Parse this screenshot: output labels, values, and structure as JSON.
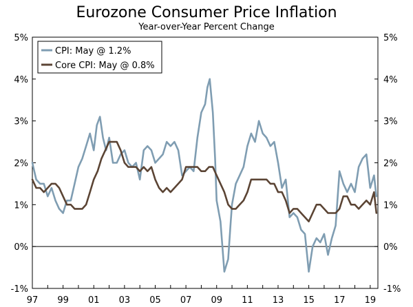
{
  "chart_data": {
    "type": "line",
    "title": "Eurozone Consumer Price Inflation",
    "subtitle": "Year-over-Year Percent Change",
    "xlabel": "",
    "ylabel": "",
    "ylim": [
      -1,
      5
    ],
    "xlim": [
      1997.0,
      2019.5
    ],
    "y_ticks": [
      -1,
      0,
      1,
      2,
      3,
      4,
      5
    ],
    "y_tick_labels": [
      "-1%",
      "0%",
      "1%",
      "2%",
      "3%",
      "4%",
      "5%"
    ],
    "x_ticks": [
      1997,
      1999,
      2001,
      2003,
      2005,
      2007,
      2009,
      2011,
      2013,
      2015,
      2017,
      2019
    ],
    "x_tick_labels": [
      "97",
      "99",
      "01",
      "03",
      "05",
      "07",
      "09",
      "11",
      "13",
      "15",
      "17",
      "19"
    ],
    "grid": false,
    "zero_line": true,
    "legend_position": "top-left",
    "series": [
      {
        "name": "CPI: May @ 1.2%",
        "color": "#7f9db2",
        "points": [
          [
            1997.0,
            2.0
          ],
          [
            1997.25,
            1.6
          ],
          [
            1997.5,
            1.5
          ],
          [
            1997.75,
            1.5
          ],
          [
            1998.0,
            1.2
          ],
          [
            1998.25,
            1.4
          ],
          [
            1998.5,
            1.1
          ],
          [
            1998.75,
            0.9
          ],
          [
            1999.0,
            0.8
          ],
          [
            1999.25,
            1.1
          ],
          [
            1999.5,
            1.1
          ],
          [
            1999.75,
            1.5
          ],
          [
            2000.0,
            1.9
          ],
          [
            2000.25,
            2.1
          ],
          [
            2000.5,
            2.4
          ],
          [
            2000.75,
            2.7
          ],
          [
            2001.0,
            2.3
          ],
          [
            2001.2,
            2.9
          ],
          [
            2001.4,
            3.1
          ],
          [
            2001.6,
            2.6
          ],
          [
            2001.8,
            2.3
          ],
          [
            2002.0,
            2.6
          ],
          [
            2002.25,
            2.0
          ],
          [
            2002.5,
            2.0
          ],
          [
            2002.75,
            2.2
          ],
          [
            2003.0,
            2.3
          ],
          [
            2003.25,
            2.0
          ],
          [
            2003.5,
            1.9
          ],
          [
            2003.75,
            2.0
          ],
          [
            2004.0,
            1.6
          ],
          [
            2004.25,
            2.3
          ],
          [
            2004.5,
            2.4
          ],
          [
            2004.75,
            2.3
          ],
          [
            2005.0,
            2.0
          ],
          [
            2005.25,
            2.1
          ],
          [
            2005.5,
            2.2
          ],
          [
            2005.75,
            2.5
          ],
          [
            2006.0,
            2.4
          ],
          [
            2006.25,
            2.5
          ],
          [
            2006.5,
            2.3
          ],
          [
            2006.75,
            1.7
          ],
          [
            2007.0,
            1.8
          ],
          [
            2007.25,
            1.9
          ],
          [
            2007.5,
            1.8
          ],
          [
            2007.75,
            2.6
          ],
          [
            2008.0,
            3.2
          ],
          [
            2008.25,
            3.4
          ],
          [
            2008.4,
            3.8
          ],
          [
            2008.55,
            4.0
          ],
          [
            2008.75,
            3.2
          ],
          [
            2008.9,
            2.1
          ],
          [
            2009.0,
            1.1
          ],
          [
            2009.25,
            0.6
          ],
          [
            2009.5,
            -0.6
          ],
          [
            2009.75,
            -0.3
          ],
          [
            2009.9,
            0.5
          ],
          [
            2010.0,
            1.0
          ],
          [
            2010.25,
            1.5
          ],
          [
            2010.5,
            1.7
          ],
          [
            2010.75,
            1.9
          ],
          [
            2011.0,
            2.4
          ],
          [
            2011.25,
            2.7
          ],
          [
            2011.5,
            2.5
          ],
          [
            2011.75,
            3.0
          ],
          [
            2012.0,
            2.7
          ],
          [
            2012.25,
            2.6
          ],
          [
            2012.5,
            2.4
          ],
          [
            2012.75,
            2.5
          ],
          [
            2013.0,
            2.0
          ],
          [
            2013.25,
            1.4
          ],
          [
            2013.5,
            1.6
          ],
          [
            2013.75,
            0.7
          ],
          [
            2014.0,
            0.8
          ],
          [
            2014.25,
            0.7
          ],
          [
            2014.5,
            0.4
          ],
          [
            2014.75,
            0.3
          ],
          [
            2015.0,
            -0.6
          ],
          [
            2015.25,
            0.0
          ],
          [
            2015.5,
            0.2
          ],
          [
            2015.75,
            0.1
          ],
          [
            2016.0,
            0.3
          ],
          [
            2016.25,
            -0.2
          ],
          [
            2016.5,
            0.2
          ],
          [
            2016.75,
            0.5
          ],
          [
            2017.0,
            1.8
          ],
          [
            2017.25,
            1.5
          ],
          [
            2017.5,
            1.3
          ],
          [
            2017.75,
            1.5
          ],
          [
            2018.0,
            1.3
          ],
          [
            2018.25,
            1.9
          ],
          [
            2018.5,
            2.1
          ],
          [
            2018.75,
            2.2
          ],
          [
            2019.0,
            1.4
          ],
          [
            2019.25,
            1.7
          ],
          [
            2019.4,
            1.2
          ]
        ]
      },
      {
        "name": "Core CPI: May @ 0.8%",
        "color": "#5b4434",
        "points": [
          [
            1997.0,
            1.6
          ],
          [
            1997.25,
            1.4
          ],
          [
            1997.5,
            1.4
          ],
          [
            1997.75,
            1.3
          ],
          [
            1998.0,
            1.4
          ],
          [
            1998.25,
            1.5
          ],
          [
            1998.5,
            1.5
          ],
          [
            1998.75,
            1.4
          ],
          [
            1999.0,
            1.2
          ],
          [
            1999.25,
            1.0
          ],
          [
            1999.5,
            1.0
          ],
          [
            1999.75,
            0.9
          ],
          [
            2000.0,
            0.9
          ],
          [
            2000.25,
            0.9
          ],
          [
            2000.5,
            1.0
          ],
          [
            2000.75,
            1.3
          ],
          [
            2001.0,
            1.6
          ],
          [
            2001.25,
            1.8
          ],
          [
            2001.5,
            2.1
          ],
          [
            2001.75,
            2.3
          ],
          [
            2002.0,
            2.5
          ],
          [
            2002.25,
            2.5
          ],
          [
            2002.5,
            2.5
          ],
          [
            2002.75,
            2.3
          ],
          [
            2003.0,
            2.0
          ],
          [
            2003.25,
            1.9
          ],
          [
            2003.5,
            1.9
          ],
          [
            2003.75,
            1.9
          ],
          [
            2004.0,
            1.8
          ],
          [
            2004.25,
            1.9
          ],
          [
            2004.5,
            1.8
          ],
          [
            2004.75,
            1.9
          ],
          [
            2005.0,
            1.6
          ],
          [
            2005.25,
            1.4
          ],
          [
            2005.5,
            1.3
          ],
          [
            2005.75,
            1.4
          ],
          [
            2006.0,
            1.3
          ],
          [
            2006.25,
            1.4
          ],
          [
            2006.5,
            1.5
          ],
          [
            2006.75,
            1.6
          ],
          [
            2007.0,
            1.9
          ],
          [
            2007.25,
            1.9
          ],
          [
            2007.5,
            1.9
          ],
          [
            2007.75,
            1.9
          ],
          [
            2008.0,
            1.8
          ],
          [
            2008.25,
            1.8
          ],
          [
            2008.5,
            1.9
          ],
          [
            2008.75,
            1.9
          ],
          [
            2009.0,
            1.7
          ],
          [
            2009.25,
            1.5
          ],
          [
            2009.5,
            1.3
          ],
          [
            2009.75,
            1.0
          ],
          [
            2010.0,
            0.9
          ],
          [
            2010.25,
            0.9
          ],
          [
            2010.5,
            1.0
          ],
          [
            2010.75,
            1.1
          ],
          [
            2011.0,
            1.3
          ],
          [
            2011.25,
            1.6
          ],
          [
            2011.5,
            1.6
          ],
          [
            2011.75,
            1.6
          ],
          [
            2012.0,
            1.6
          ],
          [
            2012.25,
            1.6
          ],
          [
            2012.5,
            1.5
          ],
          [
            2012.75,
            1.5
          ],
          [
            2013.0,
            1.3
          ],
          [
            2013.25,
            1.3
          ],
          [
            2013.5,
            1.1
          ],
          [
            2013.75,
            0.8
          ],
          [
            2014.0,
            0.9
          ],
          [
            2014.25,
            0.9
          ],
          [
            2014.5,
            0.8
          ],
          [
            2014.75,
            0.7
          ],
          [
            2015.0,
            0.6
          ],
          [
            2015.25,
            0.8
          ],
          [
            2015.5,
            1.0
          ],
          [
            2015.75,
            1.0
          ],
          [
            2016.0,
            0.9
          ],
          [
            2016.25,
            0.8
          ],
          [
            2016.5,
            0.8
          ],
          [
            2016.75,
            0.8
          ],
          [
            2017.0,
            0.9
          ],
          [
            2017.25,
            1.2
          ],
          [
            2017.5,
            1.2
          ],
          [
            2017.75,
            1.0
          ],
          [
            2018.0,
            1.0
          ],
          [
            2018.25,
            0.9
          ],
          [
            2018.5,
            1.0
          ],
          [
            2018.75,
            1.1
          ],
          [
            2019.0,
            1.0
          ],
          [
            2019.25,
            1.3
          ],
          [
            2019.4,
            0.8
          ]
        ]
      }
    ]
  }
}
